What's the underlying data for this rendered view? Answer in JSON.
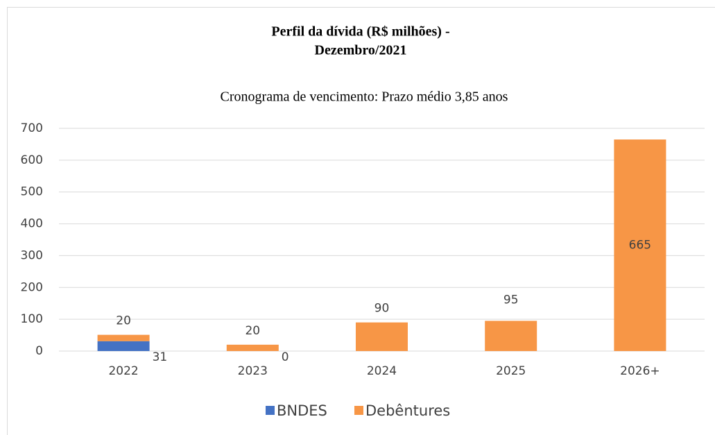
{
  "chart_data": {
    "type": "stacked_bar",
    "title": [
      "Perfil da dívida (R$ milhões) -",
      "Dezembro/2021"
    ],
    "subtitle": "Cronograma de vencimento: Prazo médio 3,85 anos",
    "categories": [
      "2022",
      "2023",
      "2024",
      "2025",
      "2026+"
    ],
    "series": [
      {
        "name": "BNDES",
        "color": "#4472c4",
        "values": [
          31,
          0,
          null,
          null,
          null
        ]
      },
      {
        "name": "Debêntures",
        "color": "#f79646",
        "values": [
          20,
          20,
          90,
          95,
          665
        ]
      }
    ],
    "ylim": [
      0,
      700
    ],
    "yticks": [
      0,
      100,
      200,
      300,
      400,
      500,
      600,
      700
    ],
    "grid": true,
    "legend": "bottom"
  }
}
